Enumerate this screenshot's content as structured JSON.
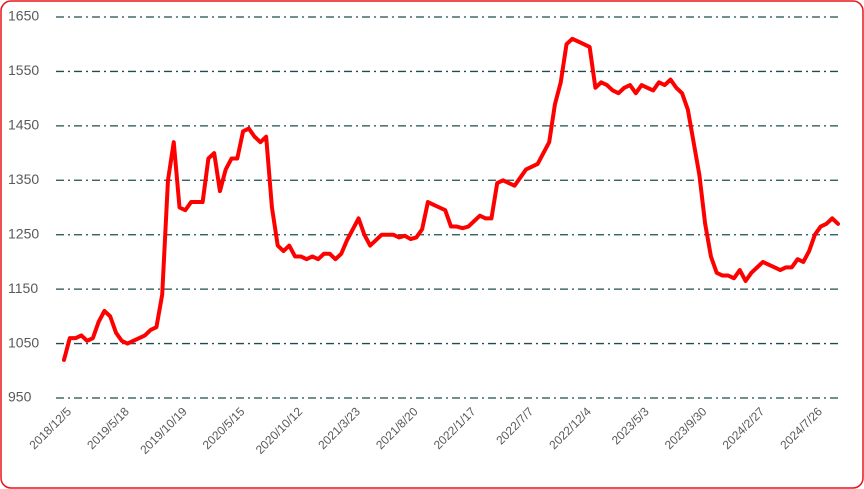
{
  "chart_data": {
    "type": "line",
    "categories": [
      null,
      "2018/12/5",
      null,
      null,
      null,
      null,
      null,
      null,
      null,
      null,
      null,
      "2019/5/18",
      null,
      null,
      null,
      null,
      null,
      null,
      null,
      null,
      null,
      "2019/10/19",
      null,
      null,
      null,
      null,
      null,
      null,
      null,
      null,
      null,
      "2020/5/15",
      null,
      null,
      null,
      null,
      null,
      null,
      null,
      null,
      null,
      "2020/10/12",
      null,
      null,
      null,
      null,
      null,
      null,
      null,
      null,
      null,
      "2021/3/23",
      null,
      null,
      null,
      null,
      null,
      null,
      null,
      null,
      null,
      "2021/8/20",
      null,
      null,
      null,
      null,
      null,
      null,
      null,
      null,
      null,
      "2022/1/17",
      null,
      null,
      null,
      null,
      null,
      null,
      null,
      null,
      null,
      "2022/7/7",
      null,
      null,
      null,
      null,
      null,
      null,
      null,
      null,
      null,
      "2022/12/4",
      null,
      null,
      null,
      null,
      null,
      null,
      null,
      null,
      null,
      "2023/5/3",
      null,
      null,
      null,
      null,
      null,
      null,
      null,
      null,
      null,
      "2023/9/30",
      null,
      null,
      null,
      null,
      null,
      null,
      null,
      null,
      null,
      "2024/2/27",
      null,
      null,
      null,
      null,
      null,
      null,
      null,
      null,
      null,
      "2024/7/26",
      null,
      null,
      null
    ],
    "values": [
      1020,
      1060,
      1060,
      1065,
      1055,
      1060,
      1090,
      1110,
      1100,
      1070,
      1055,
      1050,
      1055,
      1060,
      1065,
      1075,
      1080,
      1140,
      1350,
      1420,
      1300,
      1295,
      1310,
      1310,
      1310,
      1390,
      1400,
      1330,
      1370,
      1390,
      1390,
      1440,
      1445,
      1430,
      1420,
      1430,
      1300,
      1230,
      1220,
      1230,
      1210,
      1210,
      1205,
      1210,
      1205,
      1215,
      1215,
      1205,
      1215,
      1240,
      1260,
      1280,
      1250,
      1230,
      1240,
      1250,
      1250,
      1250,
      1245,
      1248,
      1242,
      1245,
      1260,
      1310,
      1305,
      1300,
      1295,
      1265,
      1265,
      1262,
      1265,
      1275,
      1285,
      1280,
      1280,
      1345,
      1350,
      1345,
      1340,
      1355,
      1370,
      1375,
      1380,
      1400,
      1420,
      1490,
      1530,
      1600,
      1610,
      1605,
      1600,
      1595,
      1520,
      1530,
      1525,
      1515,
      1510,
      1520,
      1525,
      1510,
      1525,
      1520,
      1515,
      1530,
      1525,
      1535,
      1520,
      1510,
      1480,
      1420,
      1360,
      1270,
      1210,
      1180,
      1175,
      1175,
      1170,
      1185,
      1165,
      1180,
      1190,
      1200,
      1195,
      1190,
      1185,
      1190,
      1190,
      1205,
      1200,
      1220,
      1250,
      1265,
      1270,
      1280,
      1270
    ],
    "color": "#ff0000",
    "ylim": [
      950,
      1650
    ],
    "yticks": [
      950,
      1050,
      1150,
      1250,
      1350,
      1450,
      1550,
      1650
    ],
    "grid": true
  }
}
